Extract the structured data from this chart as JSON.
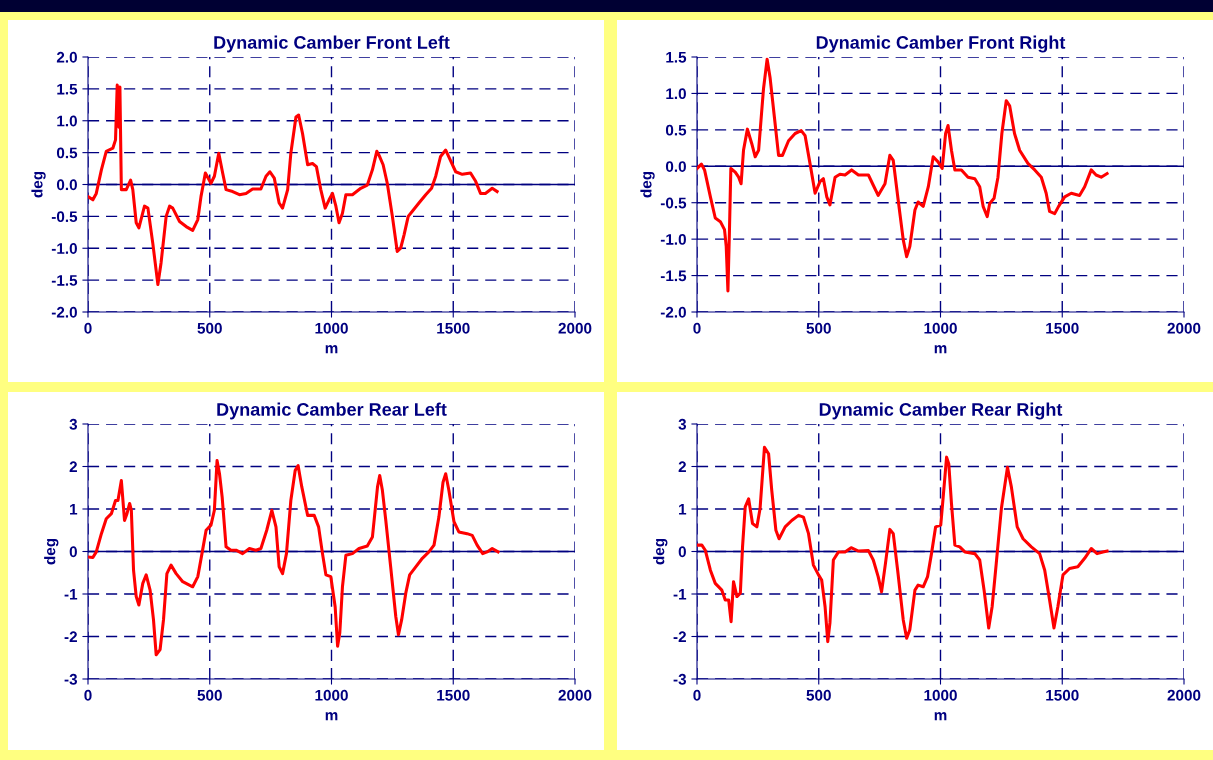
{
  "chart_data": [
    {
      "type": "line",
      "title": "Dynamic Camber Front Left",
      "xlabel": "m",
      "ylabel": "deg",
      "xlim": [
        0,
        2000
      ],
      "xticks": [
        0,
        500,
        1000,
        1500,
        2000
      ],
      "ylim": [
        -2,
        2
      ],
      "yticks": [
        {
          "value": -2,
          "label": "-2.0"
        },
        {
          "value": -1.5,
          "label": "-1.5"
        },
        {
          "value": -1,
          "label": "-1.0"
        },
        {
          "value": -0.5,
          "label": "-0.5"
        },
        {
          "value": 0,
          "label": "0.0"
        },
        {
          "value": 0.5,
          "label": "0.5"
        },
        {
          "value": 1,
          "label": "1.0"
        },
        {
          "value": 1.5,
          "label": "1.5"
        },
        {
          "value": 2,
          "label": "2.0"
        }
      ],
      "grid": true,
      "marker": "none",
      "line_style": "solid",
      "ref_lines": [
        {
          "axis": "y",
          "value": 0,
          "color": "#000080"
        }
      ],
      "series": [
        {
          "color": "#ff0000",
          "x": [
            0,
            20,
            34,
            55,
            75,
            102,
            113,
            120,
            127,
            131,
            137,
            157,
            175,
            184,
            198,
            209,
            232,
            246,
            266,
            287,
            300,
            321,
            335,
            348,
            376,
            403,
            430,
            451,
            464,
            482,
            505,
            519,
            537,
            553,
            567,
            594,
            622,
            649,
            676,
            710,
            731,
            747,
            765,
            785,
            799,
            820,
            833,
            854,
            865,
            881,
            902,
            922,
            938,
            956,
            974,
            990,
            1004,
            1018,
            1031,
            1045,
            1059,
            1086,
            1120,
            1147,
            1168,
            1186,
            1195,
            1212,
            1229,
            1250,
            1270,
            1284,
            1298,
            1315,
            1332,
            1359,
            1387,
            1411,
            1428,
            1448,
            1469,
            1487,
            1510,
            1537,
            1571,
            1592,
            1612,
            1632,
            1660,
            1680
          ],
          "values": [
            -0.19,
            -0.24,
            -0.14,
            0.23,
            0.52,
            0.57,
            0.7,
            1.56,
            0.9,
            1.53,
            -0.08,
            -0.08,
            0.07,
            -0.08,
            -0.6,
            -0.68,
            -0.34,
            -0.37,
            -0.92,
            -1.57,
            -1.23,
            -0.5,
            -0.34,
            -0.37,
            -0.58,
            -0.66,
            -0.72,
            -0.55,
            -0.19,
            0.18,
            0.02,
            0.13,
            0.49,
            0.18,
            -0.08,
            -0.11,
            -0.16,
            -0.14,
            -0.07,
            -0.07,
            0.13,
            0.2,
            0.1,
            -0.29,
            -0.37,
            -0.08,
            0.49,
            1.06,
            1.09,
            0.8,
            0.31,
            0.33,
            0.28,
            -0.08,
            -0.37,
            -0.24,
            -0.14,
            -0.34,
            -0.6,
            -0.45,
            -0.16,
            -0.16,
            -0.06,
            -0.01,
            0.23,
            0.52,
            0.46,
            0.31,
            0.02,
            -0.5,
            -1.05,
            -1.0,
            -0.79,
            -0.5,
            -0.42,
            -0.29,
            -0.16,
            -0.06,
            0.13,
            0.44,
            0.54,
            0.39,
            0.2,
            0.16,
            0.18,
            0.05,
            -0.14,
            -0.14,
            -0.06,
            -0.11
          ]
        }
      ]
    },
    {
      "type": "line",
      "title": "Dynamic Camber Front Right",
      "xlabel": "m",
      "ylabel": "deg",
      "xlim": [
        0,
        2000
      ],
      "xticks": [
        0,
        500,
        1000,
        1500,
        2000
      ],
      "ylim": [
        -2,
        1.5
      ],
      "yticks": [
        {
          "value": -2,
          "label": "-2.0"
        },
        {
          "value": -1.5,
          "label": "-1.5"
        },
        {
          "value": -1,
          "label": "-1.0"
        },
        {
          "value": -0.5,
          "label": "-0.5"
        },
        {
          "value": 0,
          "label": "0.0"
        },
        {
          "value": 0.5,
          "label": "0.5"
        },
        {
          "value": 1,
          "label": "1.0"
        },
        {
          "value": 1.5,
          "label": "1.5"
        }
      ],
      "grid": true,
      "marker": "none",
      "line_style": "solid",
      "ref_lines": [
        {
          "axis": "y",
          "value": 0,
          "color": "#000080"
        }
      ],
      "series": [
        {
          "color": "#ff0000",
          "x": [
            0,
            18,
            31,
            55,
            75,
            96,
            113,
            120,
            127,
            133,
            139,
            157,
            171,
            181,
            191,
            207,
            225,
            239,
            253,
            273,
            288,
            300,
            318,
            335,
            351,
            376,
            403,
            428,
            444,
            464,
            485,
            505,
            519,
            533,
            546,
            567,
            587,
            608,
            635,
            663,
            704,
            724,
            744,
            772,
            792,
            806,
            826,
            847,
            861,
            874,
            895,
            908,
            929,
            950,
            970,
            990,
            1007,
            1021,
            1031,
            1045,
            1059,
            1086,
            1113,
            1141,
            1161,
            1175,
            1192,
            1202,
            1220,
            1236,
            1252,
            1270,
            1284,
            1304,
            1325,
            1359,
            1387,
            1414,
            1434,
            1448,
            1469,
            1485,
            1510,
            1537,
            1571,
            1592,
            1619,
            1639,
            1660,
            1684
          ],
          "values": [
            -0.03,
            0.03,
            -0.05,
            -0.42,
            -0.71,
            -0.76,
            -0.87,
            -1.1,
            -1.71,
            -0.92,
            -0.03,
            -0.08,
            -0.15,
            -0.24,
            0.22,
            0.51,
            0.31,
            0.13,
            0.22,
            1.06,
            1.47,
            1.22,
            0.67,
            0.15,
            0.15,
            0.35,
            0.45,
            0.49,
            0.42,
            0.04,
            -0.37,
            -0.21,
            -0.17,
            -0.42,
            -0.53,
            -0.15,
            -0.11,
            -0.12,
            -0.05,
            -0.12,
            -0.12,
            -0.26,
            -0.4,
            -0.24,
            0.15,
            0.08,
            -0.46,
            -1.01,
            -1.24,
            -1.1,
            -0.6,
            -0.49,
            -0.55,
            -0.28,
            0.13,
            0.06,
            -0.03,
            0.45,
            0.56,
            0.22,
            -0.05,
            -0.05,
            -0.15,
            -0.17,
            -0.28,
            -0.55,
            -0.69,
            -0.51,
            -0.44,
            -0.15,
            0.45,
            0.9,
            0.83,
            0.45,
            0.22,
            0.04,
            -0.05,
            -0.15,
            -0.37,
            -0.62,
            -0.65,
            -0.55,
            -0.42,
            -0.37,
            -0.4,
            -0.28,
            -0.05,
            -0.12,
            -0.15,
            -0.1
          ]
        }
      ]
    },
    {
      "type": "line",
      "title": "Dynamic Camber Rear Left",
      "xlabel": "m",
      "ylabel": "deg",
      "xlim": [
        0,
        2000
      ],
      "xticks": [
        0,
        500,
        1000,
        1500,
        2000
      ],
      "ylim": [
        -3,
        3
      ],
      "yticks": [
        -3,
        -2,
        -1,
        0,
        1,
        2,
        3
      ],
      "grid": true,
      "marker": "none",
      "line_style": "solid",
      "ref_lines": [
        {
          "axis": "y",
          "value": 0,
          "color": "#000080"
        }
      ],
      "series": [
        {
          "color": "#ff0000",
          "x": [
            0,
            20,
            34,
            55,
            75,
            96,
            113,
            123,
            137,
            150,
            160,
            171,
            178,
            187,
            198,
            209,
            225,
            239,
            255,
            269,
            280,
            296,
            310,
            324,
            341,
            362,
            389,
            430,
            451,
            468,
            485,
            505,
            519,
            530,
            540,
            551,
            567,
            587,
            608,
            635,
            663,
            690,
            710,
            734,
            755,
            772,
            785,
            799,
            815,
            833,
            851,
            863,
            878,
            902,
            929,
            947,
            963,
            977,
            997,
            1015,
            1025,
            1034,
            1045,
            1059,
            1086,
            1113,
            1147,
            1168,
            1189,
            1198,
            1209,
            1223,
            1243,
            1264,
            1275,
            1288,
            1305,
            1321,
            1346,
            1373,
            1400,
            1421,
            1441,
            1458,
            1469,
            1482,
            1503,
            1523,
            1557,
            1578,
            1598,
            1621,
            1639,
            1660,
            1684
          ],
          "values": [
            -0.13,
            -0.14,
            -0.01,
            0.42,
            0.77,
            0.89,
            1.2,
            1.2,
            1.67,
            0.73,
            0.89,
            1.13,
            0.97,
            -0.44,
            -1.06,
            -1.26,
            -0.75,
            -0.55,
            -0.91,
            -1.61,
            -2.43,
            -2.31,
            -1.61,
            -0.52,
            -0.32,
            -0.52,
            -0.71,
            -0.83,
            -0.59,
            -0.05,
            0.5,
            0.62,
            0.97,
            2.14,
            1.83,
            1.28,
            0.11,
            0.03,
            0.03,
            -0.05,
            0.07,
            0.03,
            0.07,
            0.5,
            0.97,
            0.58,
            -0.36,
            -0.52,
            -0.05,
            1.2,
            1.91,
            2.02,
            1.52,
            0.85,
            0.85,
            0.58,
            -0.05,
            -0.55,
            -0.59,
            -1.3,
            -2.23,
            -1.92,
            -0.83,
            -0.09,
            -0.05,
            0.07,
            0.13,
            0.34,
            1.52,
            1.79,
            1.44,
            0.73,
            -0.36,
            -1.53,
            -1.96,
            -1.61,
            -0.98,
            -0.55,
            -0.36,
            -0.16,
            -0.01,
            0.15,
            0.81,
            1.63,
            1.83,
            1.44,
            0.7,
            0.46,
            0.42,
            0.38,
            0.15,
            -0.05,
            -0.01,
            0.07,
            -0.01
          ]
        }
      ]
    },
    {
      "type": "line",
      "title": "Dynamic Camber Rear Right",
      "xlabel": "m",
      "ylabel": "deg",
      "xlim": [
        0,
        2000
      ],
      "xticks": [
        0,
        500,
        1000,
        1500,
        2000
      ],
      "ylim": [
        -3,
        3
      ],
      "yticks": [
        -3,
        -2,
        -1,
        0,
        1,
        2,
        3
      ],
      "grid": true,
      "marker": "none",
      "line_style": "solid",
      "ref_lines": [
        {
          "axis": "y",
          "value": 0,
          "color": "#000080"
        }
      ],
      "series": [
        {
          "color": "#ff0000",
          "x": [
            0,
            20,
            34,
            55,
            75,
            102,
            116,
            130,
            140,
            150,
            164,
            178,
            187,
            198,
            212,
            228,
            246,
            259,
            277,
            294,
            307,
            324,
            337,
            362,
            389,
            417,
            437,
            458,
            478,
            499,
            512,
            526,
            537,
            546,
            560,
            581,
            608,
            633,
            663,
            704,
            724,
            744,
            758,
            774,
            792,
            806,
            824,
            847,
            861,
            874,
            895,
            908,
            929,
            947,
            963,
            980,
            1001,
            1011,
            1025,
            1034,
            1045,
            1059,
            1079,
            1100,
            1141,
            1161,
            1179,
            1198,
            1212,
            1229,
            1250,
            1275,
            1291,
            1315,
            1339,
            1373,
            1407,
            1428,
            1448,
            1466,
            1482,
            1503,
            1530,
            1564,
            1592,
            1619,
            1643,
            1667,
            1684
          ],
          "values": [
            0.15,
            0.15,
            0.03,
            -0.44,
            -0.75,
            -0.91,
            -1.14,
            -1.14,
            -1.65,
            -0.71,
            -1.06,
            -0.98,
            0.11,
            1.05,
            1.24,
            0.66,
            0.58,
            1.01,
            2.45,
            2.3,
            1.44,
            0.5,
            0.3,
            0.58,
            0.73,
            0.85,
            0.81,
            0.42,
            -0.32,
            -0.55,
            -0.67,
            -1.3,
            -2.12,
            -1.68,
            -0.2,
            -0.01,
            -0.01,
            0.09,
            0.01,
            0.02,
            -0.2,
            -0.59,
            -0.95,
            -0.28,
            0.52,
            0.42,
            -0.44,
            -1.61,
            -2.04,
            -1.84,
            -0.91,
            -0.79,
            -0.83,
            -0.59,
            -0.05,
            0.58,
            0.62,
            1.28,
            2.22,
            2.06,
            1.13,
            0.15,
            0.11,
            -0.01,
            -0.05,
            -0.2,
            -0.91,
            -1.8,
            -1.3,
            -0.28,
            1.01,
            1.98,
            1.52,
            0.58,
            0.3,
            0.11,
            -0.05,
            -0.44,
            -1.14,
            -1.8,
            -1.3,
            -0.55,
            -0.4,
            -0.36,
            -0.16,
            0.07,
            -0.05,
            -0.01,
            0.01
          ]
        }
      ]
    }
  ]
}
